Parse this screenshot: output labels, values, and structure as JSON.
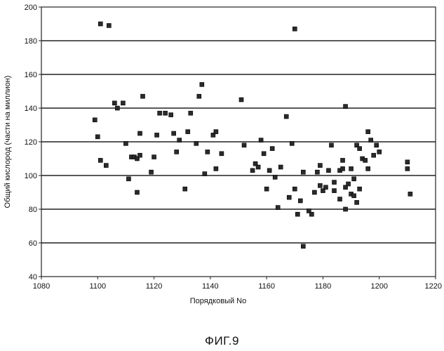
{
  "chart_data": {
    "type": "scatter",
    "title": "",
    "xlabel": "Порядковый No",
    "ylabel": "Общий кислород (части на миллион)",
    "xlim": [
      1080,
      1220
    ],
    "ylim": [
      40,
      200
    ],
    "xticks": [
      1080,
      1100,
      1120,
      1140,
      1160,
      1180,
      1200,
      1220
    ],
    "yticks": [
      40,
      60,
      80,
      100,
      120,
      140,
      160,
      180,
      200
    ],
    "grid": "horizontal",
    "legend": "none",
    "points": [
      [
        1099,
        133
      ],
      [
        1100,
        123
      ],
      [
        1101,
        190
      ],
      [
        1101,
        109
      ],
      [
        1103,
        106
      ],
      [
        1104,
        189
      ],
      [
        1106,
        143
      ],
      [
        1107,
        140
      ],
      [
        1109,
        143
      ],
      [
        1110,
        119
      ],
      [
        1111,
        98
      ],
      [
        1112,
        111
      ],
      [
        1113,
        111
      ],
      [
        1114,
        110
      ],
      [
        1114,
        90
      ],
      [
        1115,
        112
      ],
      [
        1115,
        125
      ],
      [
        1116,
        147
      ],
      [
        1119,
        102
      ],
      [
        1120,
        111
      ],
      [
        1121,
        124
      ],
      [
        1122,
        137
      ],
      [
        1124,
        137
      ],
      [
        1126,
        136
      ],
      [
        1127,
        125
      ],
      [
        1128,
        114
      ],
      [
        1129,
        121
      ],
      [
        1131,
        92
      ],
      [
        1132,
        126
      ],
      [
        1133,
        137
      ],
      [
        1135,
        119
      ],
      [
        1136,
        147
      ],
      [
        1137,
        154
      ],
      [
        1138,
        101
      ],
      [
        1139,
        114
      ],
      [
        1141,
        124
      ],
      [
        1142,
        104
      ],
      [
        1142,
        126
      ],
      [
        1144,
        113
      ],
      [
        1151,
        145
      ],
      [
        1152,
        118
      ],
      [
        1155,
        103
      ],
      [
        1156,
        107
      ],
      [
        1157,
        105
      ],
      [
        1158,
        121
      ],
      [
        1159,
        113
      ],
      [
        1160,
        92
      ],
      [
        1161,
        103
      ],
      [
        1162,
        116
      ],
      [
        1163,
        99
      ],
      [
        1164,
        81
      ],
      [
        1165,
        105
      ],
      [
        1167,
        135
      ],
      [
        1168,
        87
      ],
      [
        1169,
        119
      ],
      [
        1170,
        187
      ],
      [
        1170,
        92
      ],
      [
        1171,
        77
      ],
      [
        1172,
        85
      ],
      [
        1173,
        102
      ],
      [
        1173,
        58
      ],
      [
        1175,
        79
      ],
      [
        1176,
        77
      ],
      [
        1177,
        90
      ],
      [
        1178,
        102
      ],
      [
        1179,
        94
      ],
      [
        1179,
        106
      ],
      [
        1180,
        91
      ],
      [
        1181,
        93
      ],
      [
        1182,
        103
      ],
      [
        1183,
        118
      ],
      [
        1184,
        96
      ],
      [
        1184,
        91
      ],
      [
        1186,
        103
      ],
      [
        1186,
        86
      ],
      [
        1187,
        109
      ],
      [
        1187,
        104
      ],
      [
        1188,
        93
      ],
      [
        1188,
        141
      ],
      [
        1188,
        80
      ],
      [
        1189,
        95
      ],
      [
        1190,
        89
      ],
      [
        1190,
        104
      ],
      [
        1191,
        98
      ],
      [
        1191,
        88
      ],
      [
        1192,
        118
      ],
      [
        1192,
        84
      ],
      [
        1193,
        116
      ],
      [
        1193,
        92
      ],
      [
        1194,
        110
      ],
      [
        1195,
        109
      ],
      [
        1196,
        126
      ],
      [
        1196,
        104
      ],
      [
        1197,
        121
      ],
      [
        1198,
        112
      ],
      [
        1199,
        118
      ],
      [
        1200,
        114
      ],
      [
        1210,
        104
      ],
      [
        1210,
        108
      ],
      [
        1211,
        89
      ]
    ]
  },
  "caption": "ФИГ.9"
}
